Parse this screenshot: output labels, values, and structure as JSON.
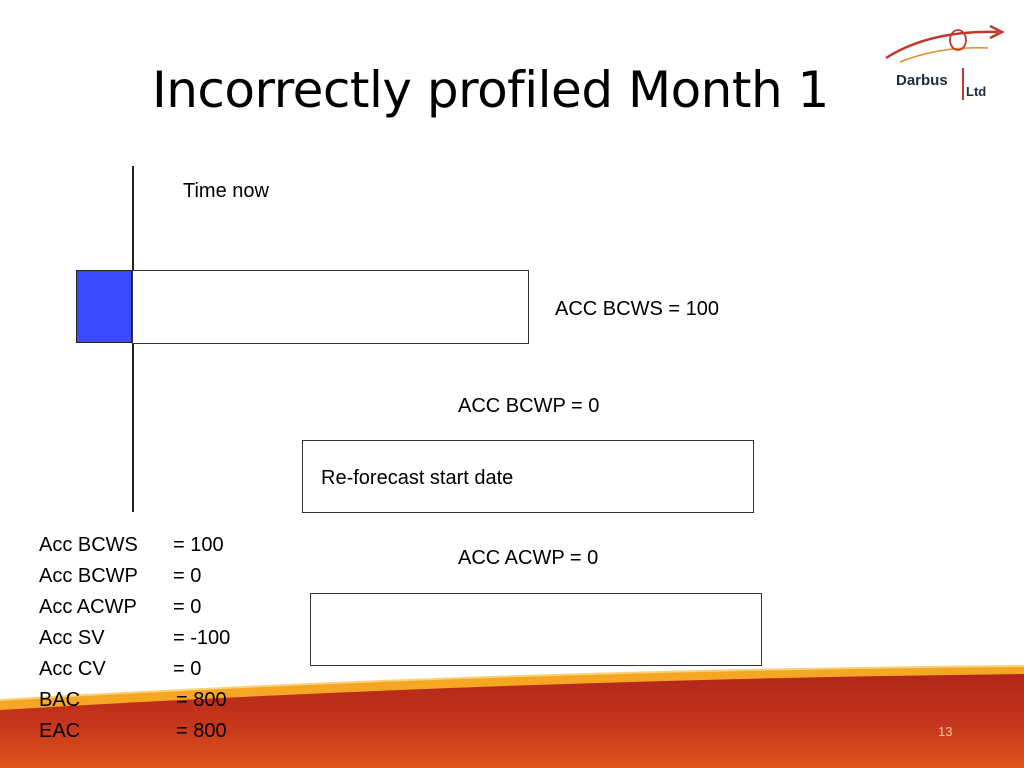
{
  "slide": {
    "title": "Incorrectly profiled Month 1",
    "page_number": "13"
  },
  "logo": {
    "name": "Darbus",
    "suffix": "Ltd"
  },
  "diagram": {
    "time_now_label": "Time now",
    "acc_bcws_label": "ACC BCWS = 100",
    "acc_bcwp_label": "ACC BCWP = 0",
    "reforecast_label": "Re-forecast start date",
    "acc_acwp_label": "ACC ACWP = 0"
  },
  "summary": [
    {
      "key": "Acc BCWS",
      "value": "= 100"
    },
    {
      "key": "Acc BCWP",
      "value": "= 0"
    },
    {
      "key": "Acc ACWP",
      "value": "= 0"
    },
    {
      "key": "Acc SV",
      "value": "= -100"
    },
    {
      "key": "Acc CV",
      "value": "= 0"
    },
    {
      "key": "BAC",
      "value": "= 800"
    },
    {
      "key": "EAC",
      "value": "= 800"
    }
  ],
  "colors": {
    "earned_block": "#3a4bff",
    "band_dark": "#b0261a",
    "band_light": "#f5a623",
    "logo_accent": "#c0392b"
  }
}
